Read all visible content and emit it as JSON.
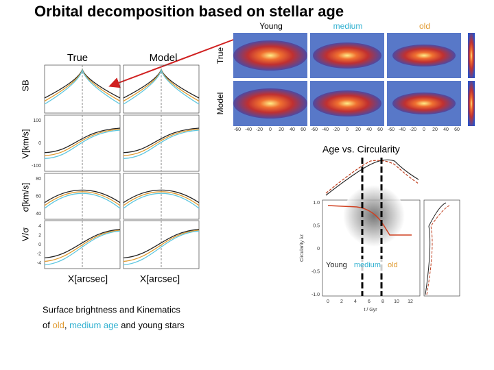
{
  "title": "Orbital decomposition based on stellar age",
  "maps": {
    "columns": [
      "Young",
      "medium",
      "old"
    ],
    "rows": [
      "True",
      "Model"
    ],
    "xticks": [
      -60,
      -40,
      -20,
      0,
      20,
      40,
      60
    ]
  },
  "profiles": {
    "columns": [
      "True",
      "Model"
    ],
    "rows": [
      "SB",
      "V[km/s]",
      "σ[km/s]",
      "V/σ"
    ],
    "v_ticks": [
      100,
      0,
      -100
    ],
    "sigma_ticks": [
      80,
      60,
      40
    ],
    "vs_ticks": [
      4,
      2,
      0,
      -2,
      -4
    ],
    "xlabels": [
      "X[arcsec]",
      "X[arcsec]"
    ]
  },
  "caption": {
    "line1": "Surface brightness and Kinematics",
    "line2": [
      {
        "text": "of "
      },
      {
        "text": "old",
        "color": "#e09a30"
      },
      {
        "text": ", "
      },
      {
        "text": "medium age",
        "color": "#30b0d0"
      },
      {
        "text": " and young stars"
      }
    ]
  },
  "circularity": {
    "title": "Age vs. Circularity",
    "ylabel": "Circularity λz",
    "xlabel": "t / Gyr",
    "xticks": [
      0,
      2,
      4,
      6,
      8,
      10,
      12
    ],
    "yticks": [
      "1.0",
      "0.5",
      "0",
      "-0.5",
      "-1.0"
    ],
    "legend": [
      {
        "text": "Young",
        "color": "#222222"
      },
      {
        "text": "medium",
        "color": "#30b0d0"
      },
      {
        "text": "old",
        "color": "#e09a30"
      }
    ]
  }
}
